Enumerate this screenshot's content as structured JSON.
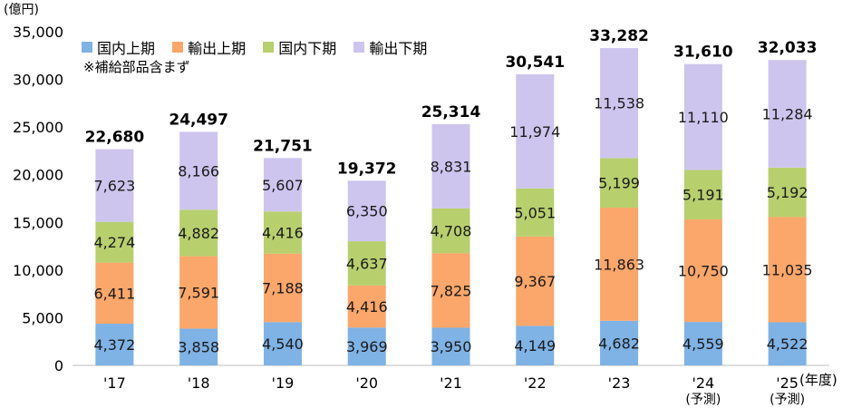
{
  "chart_data": {
    "type": "bar",
    "stacked": true,
    "y_unit_label": "(億円)",
    "x_unit_label": "(年度)",
    "note": "※補給部品含まず",
    "categories": [
      "'17",
      "'18",
      "'19",
      "'20",
      "'21",
      "'22",
      "'23",
      "'24",
      "'25"
    ],
    "category_subs": [
      "",
      "",
      "",
      "",
      "",
      "",
      "",
      "(予測)",
      "(予測)"
    ],
    "series": [
      {
        "name": "国内上期",
        "color": "#7fb2e5",
        "values": [
          4372,
          3858,
          4540,
          3969,
          3950,
          4149,
          4682,
          4559,
          4522
        ]
      },
      {
        "name": "輸出上期",
        "color": "#fba66a",
        "values": [
          6411,
          7591,
          7188,
          4416,
          7825,
          9367,
          11863,
          10750,
          11035
        ]
      },
      {
        "name": "国内下期",
        "color": "#b8cf6e",
        "values": [
          4274,
          4882,
          4416,
          4637,
          4708,
          5051,
          5199,
          5191,
          5192
        ]
      },
      {
        "name": "輸出下期",
        "color": "#cdc5ee",
        "values": [
          7623,
          8166,
          5607,
          6350,
          8831,
          11974,
          11538,
          11110,
          11284
        ]
      }
    ],
    "totals": [
      22680,
      24497,
      21751,
      19372,
      25314,
      30541,
      33282,
      31610,
      32033
    ],
    "ylim": [
      0,
      35000
    ],
    "yticks": [
      0,
      5000,
      10000,
      15000,
      20000,
      25000,
      30000,
      35000
    ],
    "grid": false,
    "legend_position": "top-left"
  }
}
